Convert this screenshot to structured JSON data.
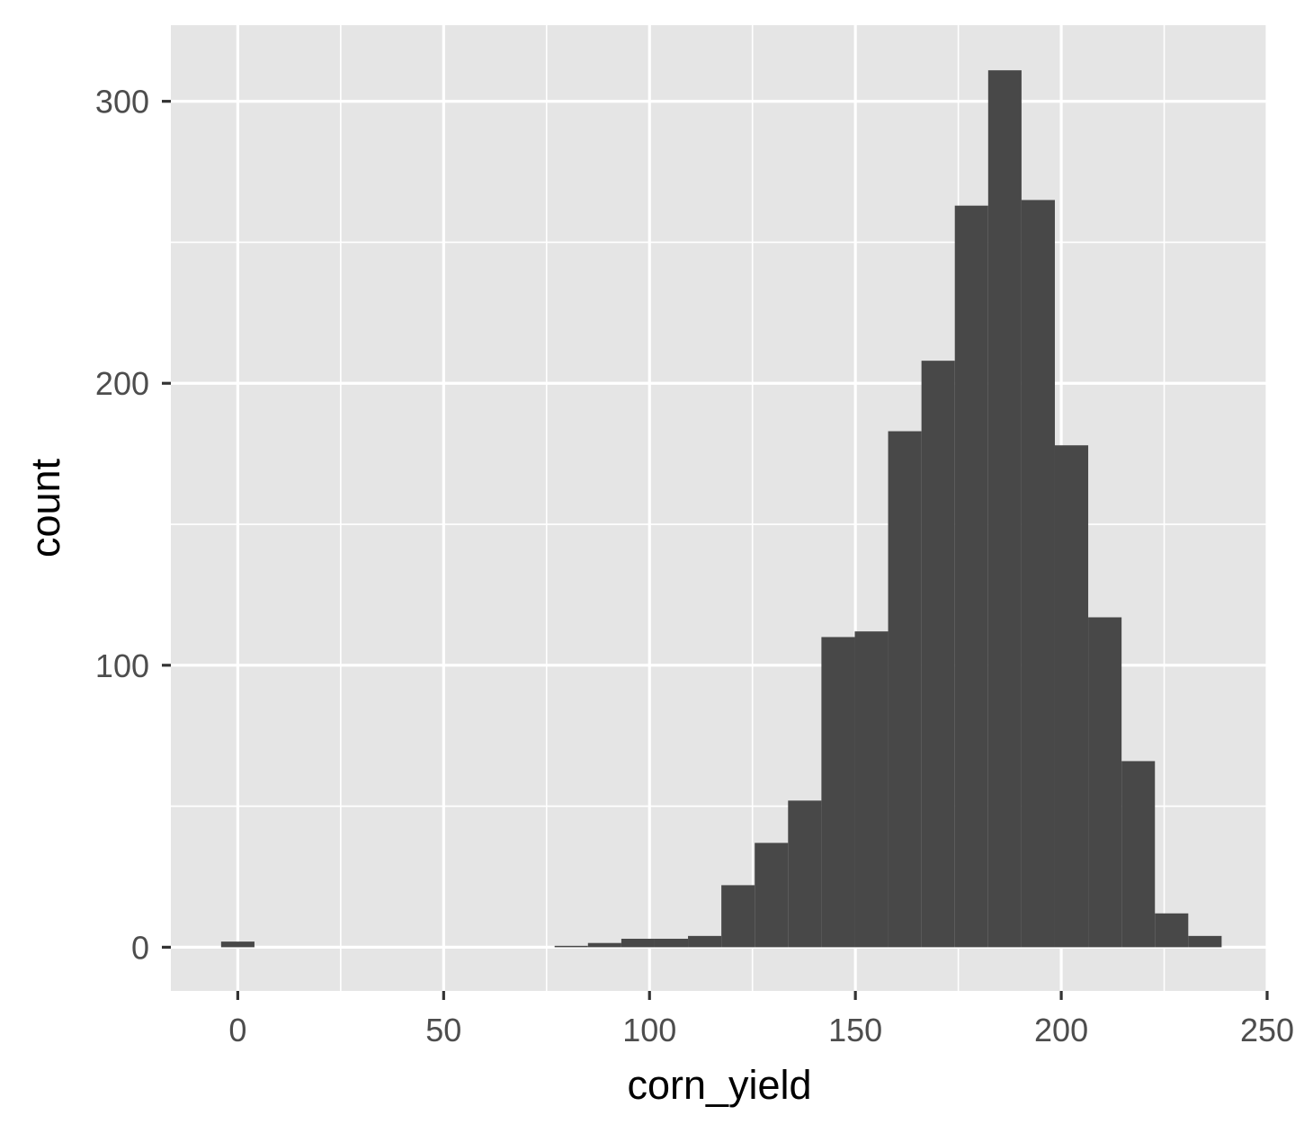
{
  "chart_data": {
    "type": "histogram",
    "title": "",
    "xlabel": "corn_yield",
    "ylabel": "count",
    "xlim": [
      -16.25,
      250
    ],
    "ylim": [
      -15.5,
      327
    ],
    "x_ticks": [
      0,
      50,
      100,
      150,
      200,
      250
    ],
    "x_tick_labels": [
      "0",
      "50",
      "100",
      "150",
      "200",
      "250"
    ],
    "y_ticks": [
      0,
      100,
      200,
      300
    ],
    "y_tick_labels": [
      "0",
      "100",
      "200",
      "300"
    ],
    "grid": true,
    "legend": "none",
    "bin_width": 8.1,
    "bins": [
      {
        "x0": -4.05,
        "x1": 4.05,
        "count": 2
      },
      {
        "x0": 76.95,
        "x1": 85.05,
        "count": 0.5
      },
      {
        "x0": 85.05,
        "x1": 93.15,
        "count": 1.5
      },
      {
        "x0": 93.15,
        "x1": 101.25,
        "count": 3
      },
      {
        "x0": 101.25,
        "x1": 109.35,
        "count": 3
      },
      {
        "x0": 109.35,
        "x1": 117.45,
        "count": 4
      },
      {
        "x0": 117.45,
        "x1": 125.55,
        "count": 22
      },
      {
        "x0": 125.55,
        "x1": 133.65,
        "count": 37
      },
      {
        "x0": 133.65,
        "x1": 141.75,
        "count": 52
      },
      {
        "x0": 141.75,
        "x1": 149.85,
        "count": 110
      },
      {
        "x0": 149.85,
        "x1": 157.95,
        "count": 112
      },
      {
        "x0": 157.95,
        "x1": 166.05,
        "count": 183
      },
      {
        "x0": 166.05,
        "x1": 174.15,
        "count": 208
      },
      {
        "x0": 174.15,
        "x1": 182.25,
        "count": 263
      },
      {
        "x0": 182.25,
        "x1": 190.35,
        "count": 311
      },
      {
        "x0": 190.35,
        "x1": 198.45,
        "count": 265
      },
      {
        "x0": 198.45,
        "x1": 206.55,
        "count": 178
      },
      {
        "x0": 206.55,
        "x1": 214.65,
        "count": 117
      },
      {
        "x0": 214.65,
        "x1": 222.75,
        "count": 66
      },
      {
        "x0": 222.75,
        "x1": 230.85,
        "count": 12
      },
      {
        "x0": 230.85,
        "x1": 238.95,
        "count": 4
      }
    ],
    "colors": {
      "panel": "#e5e5e5",
      "grid": "#ffffff",
      "bar": "#484848",
      "tick": "#333333"
    }
  }
}
